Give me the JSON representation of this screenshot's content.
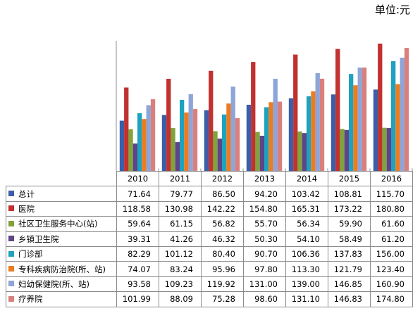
{
  "unit_label": "单位:元",
  "chart_data": {
    "type": "bar",
    "categories": [
      "2010",
      "2011",
      "2012",
      "2013",
      "2014",
      "2015",
      "2016"
    ],
    "series": [
      {
        "name": "总计",
        "color": "#3a5ea8",
        "values": [
          71.64,
          79.77,
          86.5,
          94.2,
          103.42,
          108.81,
          115.7
        ],
        "labels": [
          "71.64",
          "79.77",
          "86.50",
          "94.20",
          "103.42",
          "108.81",
          "115.70"
        ]
      },
      {
        "name": "医院",
        "color": "#c0312f",
        "values": [
          118.58,
          130.98,
          142.22,
          154.8,
          165.31,
          173.22,
          180.8
        ],
        "labels": [
          "118.58",
          "130.98",
          "142.22",
          "154.80",
          "165.31",
          "173.22",
          "180.80"
        ]
      },
      {
        "name": "社区卫生服务中心(站)",
        "color": "#80a33c",
        "values": [
          59.64,
          61.15,
          56.82,
          55.7,
          56.34,
          59.9,
          61.6
        ],
        "labels": [
          "59.64",
          "61.15",
          "56.82",
          "55.70",
          "56.34",
          "59.90",
          "61.60"
        ]
      },
      {
        "name": "乡镇卫生院",
        "color": "#604388",
        "values": [
          39.31,
          41.26,
          46.32,
          50.3,
          54.1,
          58.49,
          61.2
        ],
        "labels": [
          "39.31",
          "41.26",
          "46.32",
          "50.30",
          "54.10",
          "58.49",
          "61.20"
        ]
      },
      {
        "name": "门诊部",
        "color": "#1da2bf",
        "values": [
          82.29,
          101.12,
          80.4,
          90.7,
          106.36,
          137.83,
          156.0
        ],
        "labels": [
          "82.29",
          "101.12",
          "80.40",
          "90.70",
          "106.36",
          "137.83",
          "156.00"
        ]
      },
      {
        "name": "专科疾病防治院(所、站)",
        "color": "#ec7c21",
        "values": [
          74.07,
          83.24,
          95.96,
          97.8,
          113.3,
          121.79,
          123.4
        ],
        "labels": [
          "74.07",
          "83.24",
          "95.96",
          "97.80",
          "113.30",
          "121.79",
          "123.40"
        ]
      },
      {
        "name": "妇幼保健院(所、站)",
        "color": "#8da5d8",
        "values": [
          93.58,
          109.23,
          119.92,
          131.0,
          139.0,
          146.85,
          160.9
        ],
        "labels": [
          "93.58",
          "109.23",
          "119.92",
          "131.00",
          "139.00",
          "146.85",
          "160.90"
        ]
      },
      {
        "name": "疗养院",
        "color": "#d9807c",
        "values": [
          101.99,
          88.09,
          75.28,
          98.6,
          131.1,
          146.83,
          174.8
        ],
        "labels": [
          "101.99",
          "88.09",
          "75.28",
          "98.60",
          "131.10",
          "146.83",
          "174.80"
        ]
      }
    ],
    "ylim": [
      0,
      180.8
    ],
    "grid": false,
    "legend": "data-table"
  }
}
